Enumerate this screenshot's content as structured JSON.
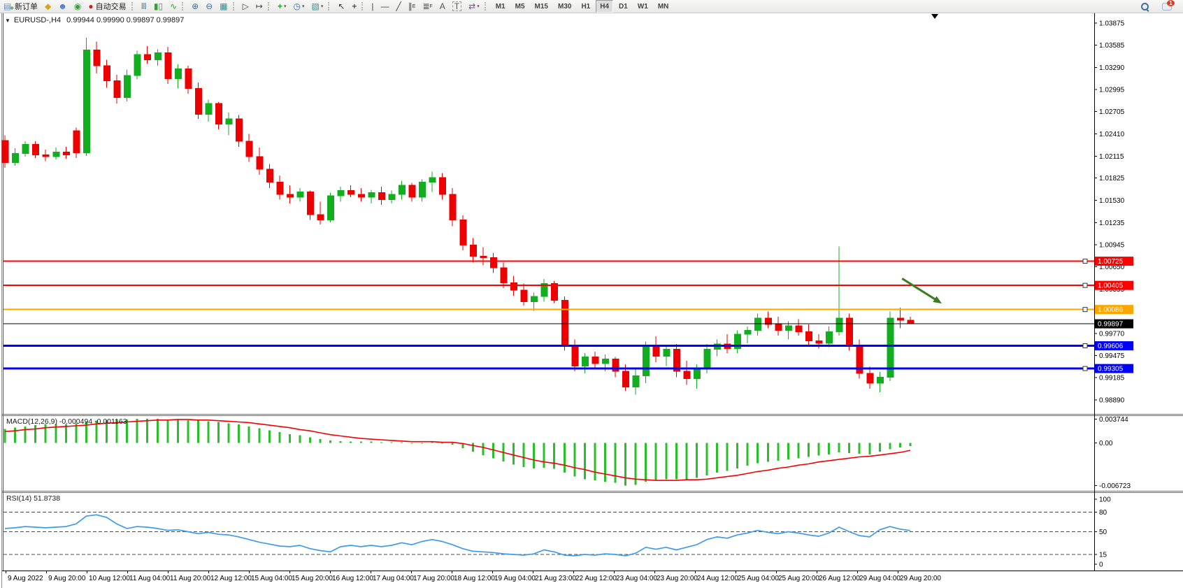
{
  "toolbar": {
    "new_order_label": "新订单",
    "auto_trading_label": "自动交易",
    "groups": [
      {
        "items": [
          {
            "name": "new-order-button",
            "glyph": "doc-plus",
            "label_key": "new_order_label"
          },
          {
            "name": "styler-button",
            "glyph": "bucket"
          },
          {
            "name": "profile-button",
            "glyph": "person"
          },
          {
            "name": "signals-button",
            "glyph": "signal"
          },
          {
            "name": "auto-trading-button",
            "glyph": "autotrade",
            "label_key": "auto_trading_label"
          }
        ]
      },
      {
        "items": [
          {
            "name": "bar-chart-button",
            "glyph": "bars"
          },
          {
            "name": "candlestick-chart-button",
            "glyph": "candles"
          },
          {
            "name": "line-chart-button",
            "glyph": "linechart"
          }
        ]
      },
      {
        "items": [
          {
            "name": "zoom-in-button",
            "glyph": "zoom-in"
          },
          {
            "name": "zoom-out-button",
            "glyph": "zoom-out"
          },
          {
            "name": "tile-windows-button",
            "glyph": "tiles"
          }
        ]
      },
      {
        "items": [
          {
            "name": "auto-scroll-button",
            "glyph": "autoscroll"
          },
          {
            "name": "chart-shift-button",
            "glyph": "chartshift"
          }
        ]
      },
      {
        "items": [
          {
            "name": "indicators-button",
            "glyph": "indicator",
            "dropdown": true
          },
          {
            "name": "periods-button",
            "glyph": "clock",
            "dropdown": true
          },
          {
            "name": "templates-button",
            "glyph": "template",
            "dropdown": true
          }
        ]
      },
      {
        "items": [
          {
            "name": "cursor-button",
            "glyph": "cursor"
          },
          {
            "name": "crosshair-button",
            "glyph": "crosshair"
          }
        ]
      },
      {
        "items": [
          {
            "name": "vertical-line-button",
            "glyph": "vline"
          },
          {
            "name": "horizontal-line-button",
            "glyph": "hline"
          },
          {
            "name": "trendline-button",
            "glyph": "trend"
          },
          {
            "name": "equidistant-channel-button",
            "glyph": "channel"
          },
          {
            "name": "fibonacci-button",
            "glyph": "fibo"
          },
          {
            "name": "text-button",
            "glyph": "textA"
          },
          {
            "name": "text-label-button",
            "glyph": "textT"
          },
          {
            "name": "arrows-button",
            "glyph": "arrows",
            "dropdown": true
          }
        ]
      }
    ],
    "timeframes": [
      "M1",
      "M5",
      "M15",
      "M30",
      "H1",
      "H4",
      "D1",
      "W1",
      "MN"
    ],
    "active_timeframe": "H4",
    "chat_badge": "1"
  },
  "header": {
    "symbol": "EURUSD-,H4",
    "ohlc": "0.99944 0.99990 0.99897 0.99897"
  },
  "colors": {
    "candle_up": "#12AE1F",
    "candle_down": "#EC0000",
    "macd_histogram": "#2BBE2B",
    "macd_signal": "#F40000",
    "rsi_line": "#3E9AEC",
    "level_red": "#FF0000",
    "level_orange": "#FFA500",
    "level_blue": "#0000FF",
    "price_line": "#000000",
    "arrow_annotation": "#3B7D23"
  },
  "chart_data": [
    {
      "type": "candlestick",
      "title": "EURUSD-,H4",
      "symbol": "EURUSD-",
      "timeframe": "H4",
      "current_bar": {
        "open": 0.99944,
        "high": 0.9999,
        "low": 0.99897,
        "close": 0.99897
      },
      "grid": false,
      "ylim": [
        0.9889,
        1.03875
      ],
      "y_ticks": [
        "1.03875",
        "1.03585",
        "1.03290",
        "1.02995",
        "1.02705",
        "1.02410",
        "1.02115",
        "1.01825",
        "1.01530",
        "1.01235",
        "1.00945",
        "1.00650",
        "1.00355",
        "1.00060",
        "0.99770",
        "0.99475",
        "0.99185",
        "0.98890"
      ],
      "x_labels": [
        "9 Aug 2022",
        "9 Aug 20:00",
        "10 Aug 12:00",
        "11 Aug 04:00",
        "11 Aug 20:00",
        "12 Aug 12:00",
        "15 Aug 04:00",
        "15 Aug 20:00",
        "16 Aug 12:00",
        "17 Aug 04:00",
        "17 Aug 20:00",
        "18 Aug 12:00",
        "19 Aug 04:00",
        "21 Aug 23:00",
        "22 Aug 12:00",
        "23 Aug 04:00",
        "23 Aug 20:00",
        "24 Aug 12:00",
        "25 Aug 04:00",
        "25 Aug 20:00",
        "26 Aug 12:00",
        "29 Aug 04:00",
        "29 Aug 20:00"
      ],
      "ohlc": [
        [
          1.0232,
          1.0239,
          1.0196,
          1.0203
        ],
        [
          1.0203,
          1.0222,
          1.0199,
          1.0215
        ],
        [
          1.0215,
          1.0231,
          1.0211,
          1.0227
        ],
        [
          1.0227,
          1.0231,
          1.0209,
          1.0213
        ],
        [
          1.0213,
          1.022,
          1.0205,
          1.0211
        ],
        [
          1.0211,
          1.0223,
          1.0207,
          1.0217
        ],
        [
          1.0217,
          1.0224,
          1.0208,
          1.0213
        ],
        [
          1.0245,
          1.0249,
          1.0209,
          1.0216
        ],
        [
          1.0216,
          1.0368,
          1.0212,
          1.0352
        ],
        [
          1.0352,
          1.0363,
          1.0321,
          1.0331
        ],
        [
          1.0331,
          1.0339,
          1.0302,
          1.0311
        ],
        [
          1.0311,
          1.0319,
          1.0281,
          1.0289
        ],
        [
          1.0289,
          1.0326,
          1.0284,
          1.0318
        ],
        [
          1.0318,
          1.0351,
          1.0313,
          1.0346
        ],
        [
          1.0346,
          1.0357,
          1.0334,
          1.0339
        ],
        [
          1.0339,
          1.0353,
          1.0331,
          1.0348
        ],
        [
          1.0348,
          1.0356,
          1.0307,
          1.0314
        ],
        [
          1.0314,
          1.0333,
          1.0301,
          1.0327
        ],
        [
          1.0327,
          1.0331,
          1.0294,
          1.0301
        ],
        [
          1.0301,
          1.0309,
          1.0261,
          1.0267
        ],
        [
          1.0267,
          1.0286,
          1.0257,
          1.0281
        ],
        [
          1.0281,
          1.0283,
          1.0247,
          1.0254
        ],
        [
          1.0254,
          1.0269,
          1.0239,
          1.0261
        ],
        [
          1.0261,
          1.0266,
          1.0224,
          1.0231
        ],
        [
          1.0231,
          1.0241,
          1.0204,
          1.0211
        ],
        [
          1.0211,
          1.0223,
          1.0187,
          1.0194
        ],
        [
          1.0194,
          1.0201,
          1.0169,
          1.0177
        ],
        [
          1.0177,
          1.0186,
          1.0154,
          1.0161
        ],
        [
          1.0161,
          1.0173,
          1.0149,
          1.0157
        ],
        [
          1.0157,
          1.0169,
          1.0151,
          1.0164
        ],
        [
          1.0164,
          1.0166,
          1.0127,
          1.0134
        ],
        [
          1.0134,
          1.0151,
          1.0121,
          1.0127
        ],
        [
          1.0127,
          1.0163,
          1.0124,
          1.0159
        ],
        [
          1.0159,
          1.0171,
          1.0151,
          1.0166
        ],
        [
          1.0166,
          1.0173,
          1.0157,
          1.0161
        ],
        [
          1.0161,
          1.0169,
          1.0151,
          1.0157
        ],
        [
          1.0157,
          1.0167,
          1.0149,
          1.0163
        ],
        [
          1.0163,
          1.0171,
          1.0147,
          1.0154
        ],
        [
          1.0154,
          1.0166,
          1.0149,
          1.0161
        ],
        [
          1.0161,
          1.0179,
          1.0154,
          1.0173
        ],
        [
          1.0173,
          1.0176,
          1.0151,
          1.0157
        ],
        [
          1.0157,
          1.0181,
          1.0151,
          1.0177
        ],
        [
          1.0177,
          1.0191,
          1.0164,
          1.0183
        ],
        [
          1.0183,
          1.0189,
          1.0154,
          1.0161
        ],
        [
          1.0161,
          1.0169,
          1.0119,
          1.0127
        ],
        [
          1.0127,
          1.0133,
          1.0087,
          1.0094
        ],
        [
          1.0094,
          1.0103,
          1.0071,
          1.0079
        ],
        [
          1.0079,
          1.0091,
          1.0067,
          1.0077
        ],
        [
          1.0077,
          1.0083,
          1.0057,
          1.0064
        ],
        [
          1.0064,
          1.0071,
          1.0037,
          1.0044
        ],
        [
          1.0044,
          1.0053,
          1.0027,
          1.0034
        ],
        [
          1.0034,
          1.0043,
          1.0014,
          1.0019
        ],
        [
          1.0019,
          1.0031,
          1.0007,
          1.0026
        ],
        [
          1.0026,
          1.0049,
          1.0019,
          1.0043
        ],
        [
          1.0043,
          1.0046,
          1.0017,
          1.0021
        ],
        [
          1.0021,
          1.0026,
          0.9954,
          0.9961
        ],
        [
          0.9961,
          0.9969,
          0.9927,
          0.9934
        ],
        [
          0.9934,
          0.9951,
          0.9924,
          0.9946
        ],
        [
          0.9946,
          0.9953,
          0.9929,
          0.9937
        ],
        [
          0.9937,
          0.9949,
          0.9927,
          0.9943
        ],
        [
          0.9943,
          0.9946,
          0.9919,
          0.9927
        ],
        [
          0.9927,
          0.9936,
          0.9901,
          0.9906
        ],
        [
          0.9906,
          0.9929,
          0.9896,
          0.9921
        ],
        [
          0.9921,
          0.9966,
          0.9911,
          0.9959
        ],
        [
          0.9959,
          0.9973,
          0.9939,
          0.9947
        ],
        [
          0.9947,
          0.9961,
          0.9934,
          0.9956
        ],
        [
          0.9956,
          0.9963,
          0.9919,
          0.9927
        ],
        [
          0.9927,
          0.9941,
          0.9909,
          0.9917
        ],
        [
          0.9917,
          0.9936,
          0.9904,
          0.9931
        ],
        [
          0.9931,
          0.9963,
          0.9924,
          0.9956
        ],
        [
          0.9956,
          0.9969,
          0.9947,
          0.9963
        ],
        [
          0.9963,
          0.9976,
          0.9951,
          0.9957
        ],
        [
          0.9957,
          0.9981,
          0.9951,
          0.9976
        ],
        [
          0.9976,
          0.9986,
          0.9964,
          0.9981
        ],
        [
          0.9981,
          1.0003,
          0.9974,
          0.9997
        ],
        [
          0.9997,
          1.0006,
          0.9984,
          0.9989
        ],
        [
          0.9989,
          0.9999,
          0.9974,
          0.9981
        ],
        [
          0.9981,
          0.9993,
          0.9969,
          0.9987
        ],
        [
          0.9987,
          0.9996,
          0.9974,
          0.9979
        ],
        [
          0.9979,
          0.9989,
          0.9961,
          0.9967
        ],
        [
          0.9967,
          0.9976,
          0.9957,
          0.9964
        ],
        [
          0.9964,
          0.9986,
          0.9959,
          0.9979
        ],
        [
          0.9979,
          1.0092,
          0.9974,
          0.9997
        ],
        [
          0.9997,
          1.0003,
          0.9954,
          0.9961
        ],
        [
          0.9961,
          0.9969,
          0.9917,
          0.9924
        ],
        [
          0.9924,
          0.9933,
          0.9904,
          0.9911
        ],
        [
          0.9911,
          0.9926,
          0.9899,
          0.9919
        ],
        [
          0.9919,
          1.0006,
          0.9914,
          0.9997
        ],
        [
          0.9997,
          1.0011,
          0.9984,
          0.99944
        ],
        [
          0.99944,
          0.9999,
          0.99897,
          0.99897
        ]
      ],
      "horizontal_lines": [
        {
          "price": 1.00725,
          "label": "1.00725",
          "color": "#FF0000",
          "width": 2
        },
        {
          "price": 1.00405,
          "label": "1.00405",
          "color": "#FF0000",
          "width": 2
        },
        {
          "price": 1.00086,
          "label": "1.00086",
          "color": "#FFA500",
          "width": 2
        },
        {
          "price": 0.99606,
          "label": "0.99606",
          "color": "#0000FF",
          "width": 3
        },
        {
          "price": 0.99305,
          "label": "0.99305",
          "color": "#0000FF",
          "width": 3
        }
      ],
      "price_line": {
        "price": 0.99897,
        "label": "0.99897",
        "color": "#000000"
      },
      "arrow_annotation": {
        "from_bar": 88.2,
        "from_price": 1.00495,
        "to_bar": 92.1,
        "to_price": 1.00165,
        "color": "#3B7D23"
      }
    },
    {
      "type": "macd",
      "label": "MACD(12,26,9) -0.000494 -0.001163",
      "params": "12,26,9",
      "current_values": {
        "macd": -0.000494,
        "signal": -0.001163
      },
      "ylim": [
        -0.006723,
        0.003744
      ],
      "y_ticks": [
        "0.003744",
        "0.00",
        "-0.006723"
      ],
      "y_tick_values": [
        0.003744,
        0,
        -0.006723
      ],
      "histogram": [
        0.0022,
        0.0024,
        0.0026,
        0.0028,
        0.003,
        0.003,
        0.003,
        0.0031,
        0.0033,
        0.0035,
        0.0036,
        0.0037,
        0.0037,
        0.0038,
        0.0038,
        0.0038,
        0.0037,
        0.0037,
        0.0036,
        0.0035,
        0.0034,
        0.0033,
        0.0031,
        0.0029,
        0.0026,
        0.0023,
        0.002,
        0.0017,
        0.0014,
        0.0012,
        0.0009,
        0.0006,
        0.0004,
        0.0003,
        0.0002,
        0.0002,
        0.0002,
        0.0001,
        0.0001,
        0.0001,
        0.0,
        0.0,
        0.0001,
        0.0,
        -0.0003,
        -0.0008,
        -0.0014,
        -0.0019,
        -0.0024,
        -0.0029,
        -0.0034,
        -0.0038,
        -0.004,
        -0.0039,
        -0.0041,
        -0.0047,
        -0.0053,
        -0.0057,
        -0.0059,
        -0.0061,
        -0.0063,
        -0.0067,
        -0.0066,
        -0.0061,
        -0.0059,
        -0.0057,
        -0.0057,
        -0.0057,
        -0.0055,
        -0.0051,
        -0.0047,
        -0.0044,
        -0.004,
        -0.0036,
        -0.0032,
        -0.003,
        -0.0028,
        -0.0026,
        -0.0024,
        -0.0022,
        -0.002,
        -0.0018,
        -0.0015,
        -0.0016,
        -0.0017,
        -0.0018,
        -0.0014,
        -0.001,
        -0.0007,
        -0.000494
      ],
      "signal_line": [
        0.0018,
        0.0019,
        0.0021,
        0.0022,
        0.0024,
        0.0025,
        0.0026,
        0.0027,
        0.0028,
        0.003,
        0.0031,
        0.0032,
        0.0033,
        0.0034,
        0.0035,
        0.0036,
        0.0036,
        0.0037,
        0.0037,
        0.0036,
        0.0036,
        0.0035,
        0.0034,
        0.0033,
        0.0032,
        0.003,
        0.0028,
        0.0026,
        0.0024,
        0.0021,
        0.0019,
        0.0016,
        0.0013,
        0.0011,
        0.0009,
        0.0007,
        0.0006,
        0.0005,
        0.0004,
        0.0003,
        0.0002,
        0.0002,
        0.0002,
        0.0001,
        0.0001,
        -0.0001,
        -0.0004,
        -0.0007,
        -0.0011,
        -0.0015,
        -0.0019,
        -0.0023,
        -0.0027,
        -0.003,
        -0.0032,
        -0.0035,
        -0.0039,
        -0.0042,
        -0.0046,
        -0.0049,
        -0.0052,
        -0.0055,
        -0.0057,
        -0.0058,
        -0.0059,
        -0.0059,
        -0.0059,
        -0.0058,
        -0.0058,
        -0.0057,
        -0.0055,
        -0.0053,
        -0.0051,
        -0.0048,
        -0.0045,
        -0.0043,
        -0.004,
        -0.0038,
        -0.0035,
        -0.0033,
        -0.003,
        -0.0028,
        -0.0026,
        -0.0024,
        -0.0022,
        -0.0021,
        -0.0019,
        -0.0017,
        -0.0015,
        -0.001163
      ]
    },
    {
      "type": "rsi",
      "label": "RSI(14) 51.8738",
      "period": 14,
      "current_value": 51.8738,
      "ylim": [
        0,
        100
      ],
      "levels": [
        80,
        50,
        15
      ],
      "y_ticks": [
        "100",
        "80",
        "50",
        "15",
        "0"
      ],
      "y_tick_values": [
        100,
        80,
        50,
        15,
        0
      ],
      "values": [
        55,
        56,
        58,
        57,
        56,
        57,
        58,
        62,
        74,
        76,
        72,
        62,
        55,
        58,
        57,
        55,
        52,
        53,
        50,
        47,
        49,
        46,
        45,
        42,
        38,
        34,
        31,
        28,
        27,
        29,
        24,
        21,
        19,
        27,
        29,
        27,
        29,
        27,
        29,
        33,
        30,
        35,
        38,
        35,
        30,
        24,
        20,
        19,
        18,
        16,
        15,
        14,
        16,
        22,
        19,
        14,
        13,
        15,
        14,
        16,
        15,
        13,
        17,
        26,
        23,
        26,
        22,
        26,
        30,
        38,
        42,
        40,
        45,
        48,
        52,
        49,
        47,
        50,
        48,
        45,
        43,
        48,
        57,
        50,
        44,
        42,
        53,
        58,
        54,
        51.8738
      ]
    }
  ]
}
